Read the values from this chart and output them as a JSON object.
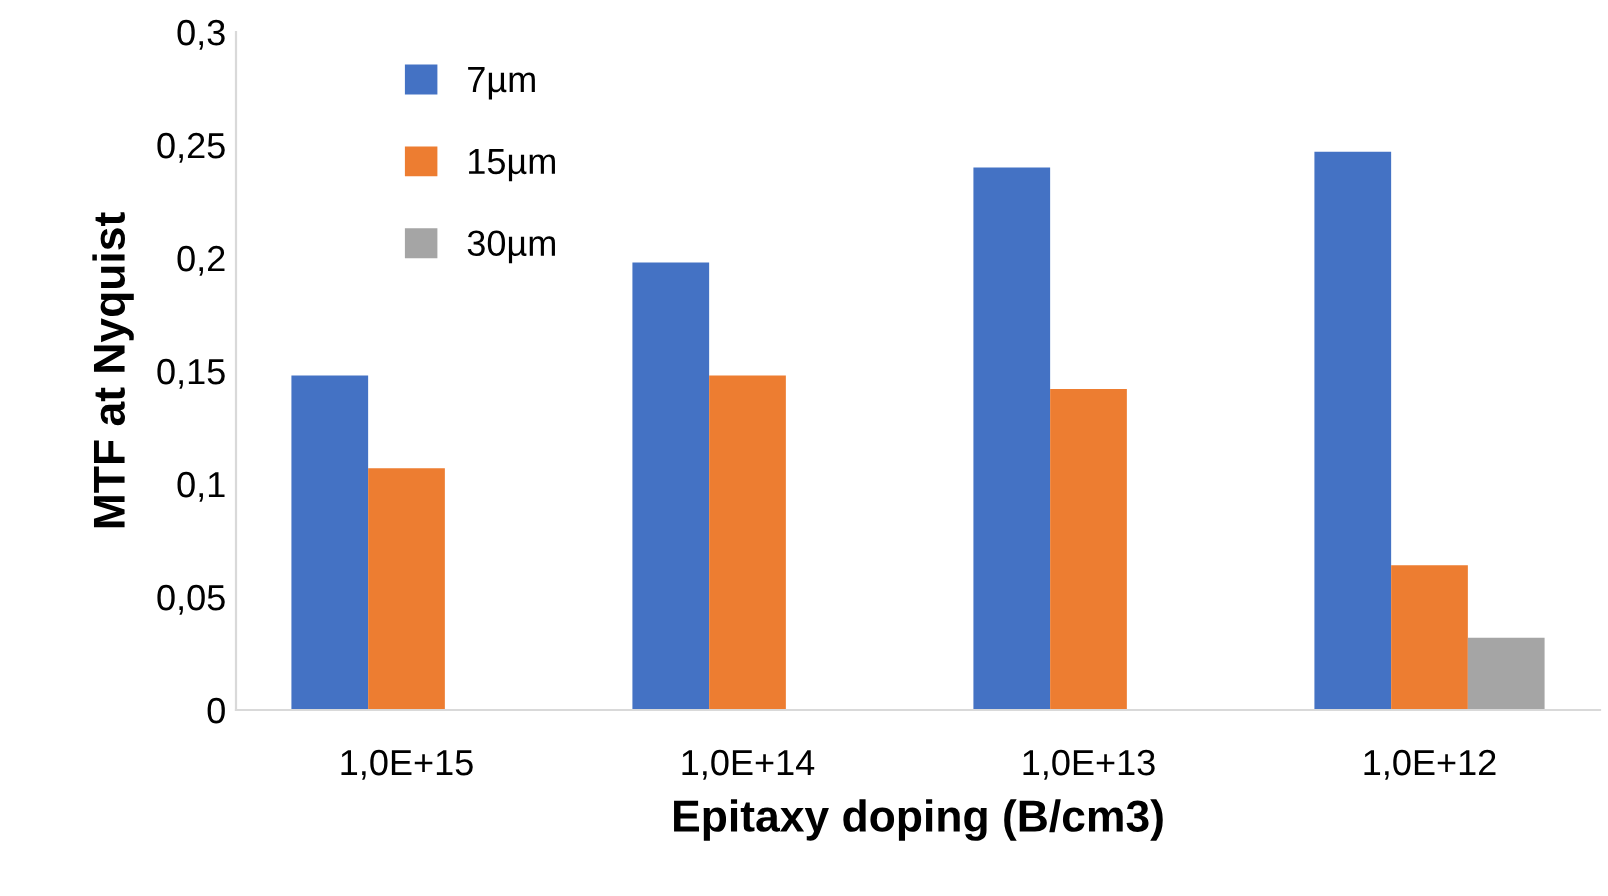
{
  "chart_data": {
    "type": "bar",
    "xlabel": "Epitaxy doping (B/cm3)",
    "ylabel": "MTF at Nyquist",
    "categories": [
      "1,0E+15",
      "1,0E+14",
      "1,0E+13",
      "1,0E+12"
    ],
    "series": [
      {
        "name": "7µm",
        "color": "#4472c4",
        "values": [
          0.148,
          0.198,
          0.24,
          0.247
        ]
      },
      {
        "name": "15µm",
        "color": "#ed7d31",
        "values": [
          0.107,
          0.148,
          0.142,
          0.064
        ]
      },
      {
        "name": "30µm",
        "color": "#a5a5a5",
        "values": [
          null,
          null,
          null,
          0.032
        ]
      }
    ],
    "ylim": [
      0,
      0.3
    ],
    "yticks": [
      0,
      {
        "value": 0.05,
        "label": "0,05"
      },
      {
        "value": 0.1,
        "label": "0,1"
      },
      {
        "value": 0.15,
        "label": "0,15"
      },
      {
        "value": 0.2,
        "label": "0,2"
      },
      {
        "value": 0.25,
        "label": "0,25"
      },
      {
        "value": 0.3,
        "label": "0,3"
      }
    ],
    "grid": false,
    "legend": "top left"
  }
}
